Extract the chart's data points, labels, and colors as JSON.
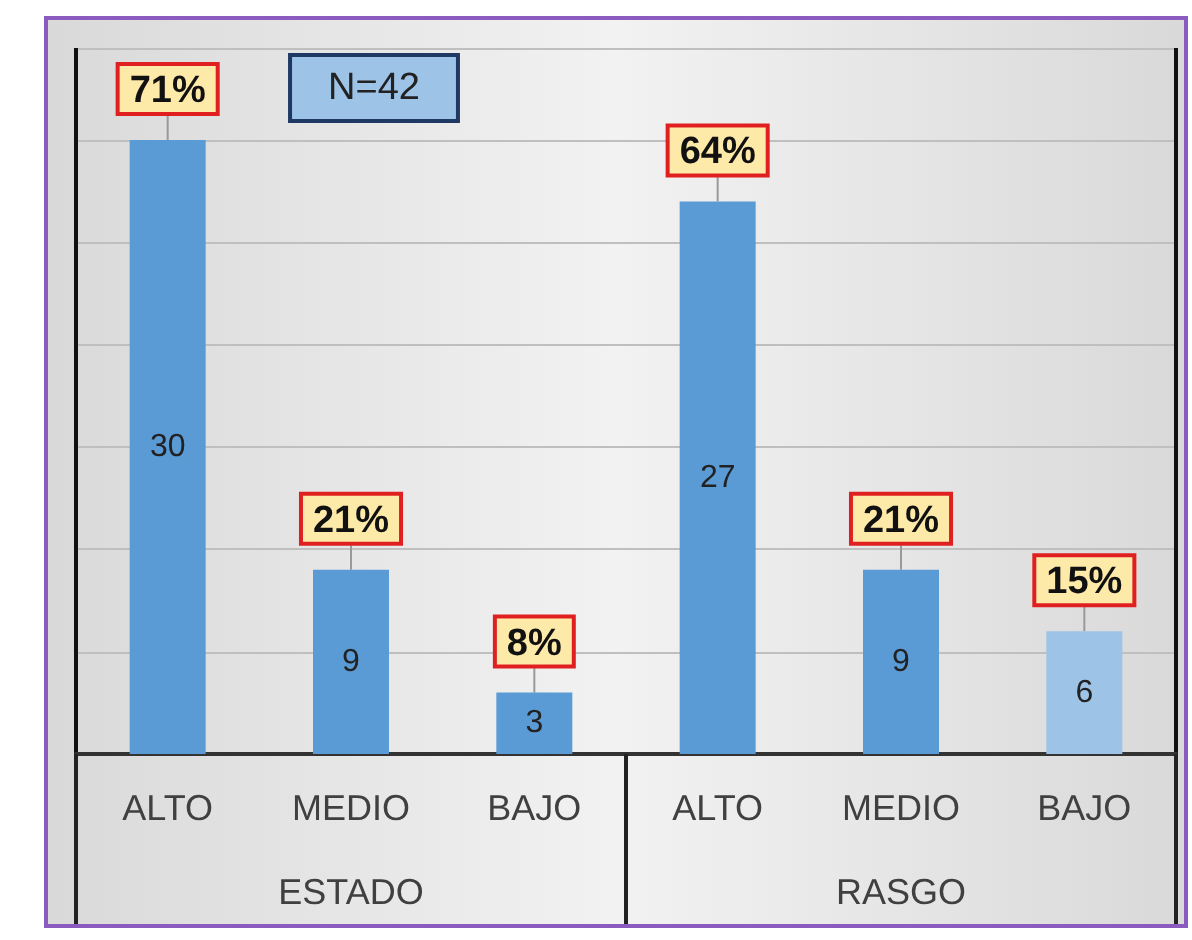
{
  "chart_data": {
    "type": "bar",
    "categories": [
      "ALTO",
      "MEDIO",
      "BAJO",
      "ALTO",
      "MEDIO",
      "BAJO"
    ],
    "values": [
      30,
      9,
      3,
      27,
      9,
      6
    ],
    "colors": [
      "#5b9bd5",
      "#5b9bd5",
      "#5b9bd5",
      "#5b9bd5",
      "#5b9bd5",
      "#9dc3e6"
    ],
    "data_labels": true,
    "tick_labels": "x",
    "grid": "y",
    "annotations": [
      "N=42",
      "ESTADO",
      "RASGO",
      "71%",
      "21%",
      "8%",
      "64%",
      "21%",
      "15%"
    ]
  }
}
